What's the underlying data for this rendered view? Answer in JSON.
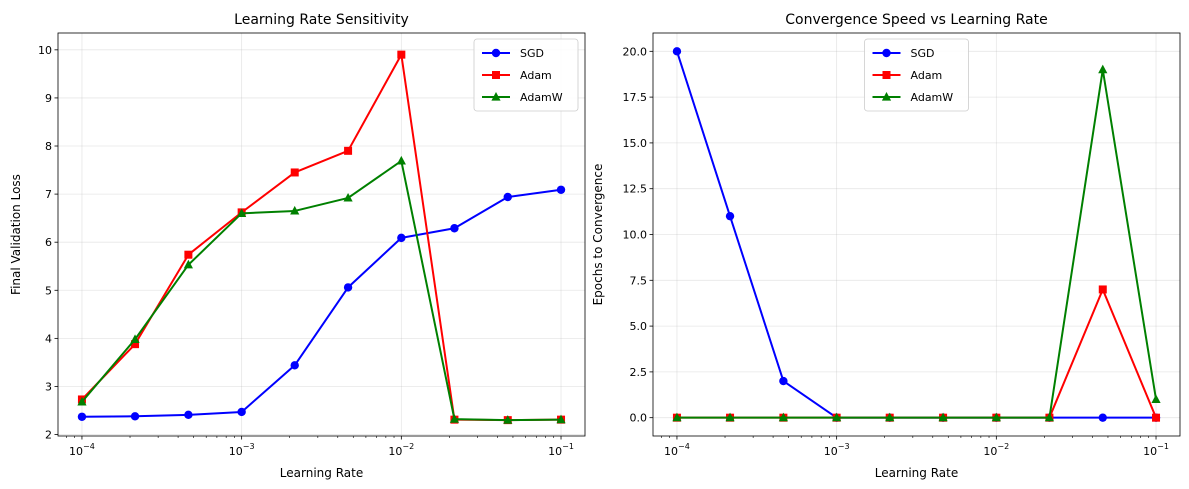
{
  "chart_data": [
    {
      "type": "line",
      "title": "Learning Rate Sensitivity",
      "xlabel": "Learning Rate",
      "ylabel": "Final Validation Loss",
      "xscale": "log",
      "xlim": [
        7.08e-05,
        0.1413
      ],
      "ylim": [
        1.97,
        10.35
      ],
      "grid": true,
      "legend_position": "upper right",
      "x": [
        0.0001,
        0.000215,
        0.000464,
        0.001,
        0.00215,
        0.00464,
        0.01,
        0.0215,
        0.0464,
        0.1
      ],
      "x_ticks": [
        {
          "value": 0.0001,
          "base": "10",
          "exp": "−4"
        },
        {
          "value": 0.001,
          "base": "10",
          "exp": "−3"
        },
        {
          "value": 0.01,
          "base": "10",
          "exp": "−2"
        },
        {
          "value": 0.1,
          "base": "10",
          "exp": "−1"
        }
      ],
      "y_ticks": [
        2,
        3,
        4,
        5,
        6,
        7,
        8,
        9,
        10
      ],
      "y_tick_labels": [
        "2",
        "3",
        "4",
        "5",
        "6",
        "7",
        "8",
        "9",
        "10"
      ],
      "series": [
        {
          "name": "SGD",
          "color": "#0000ff",
          "marker": "circle",
          "values": [
            2.37,
            2.38,
            2.41,
            2.47,
            3.44,
            5.06,
            6.09,
            6.29,
            6.94,
            7.09
          ]
        },
        {
          "name": "Adam",
          "color": "#ff0000",
          "marker": "square",
          "values": [
            2.73,
            3.88,
            5.74,
            6.62,
            7.45,
            7.9,
            9.9,
            2.31,
            2.3,
            2.31
          ]
        },
        {
          "name": "AdamW",
          "color": "#008000",
          "marker": "triangle",
          "values": [
            2.68,
            3.98,
            5.53,
            6.6,
            6.65,
            6.92,
            7.69,
            2.32,
            2.3,
            2.31
          ]
        }
      ]
    },
    {
      "type": "line",
      "title": "Convergence Speed vs Learning Rate",
      "xlabel": "Learning Rate",
      "ylabel": "Epochs to Convergence",
      "xscale": "log",
      "xlim": [
        7.08e-05,
        0.1413
      ],
      "ylim": [
        -1.0,
        21.0
      ],
      "grid": true,
      "legend_position": "upper center",
      "x": [
        0.0001,
        0.000215,
        0.000464,
        0.001,
        0.00215,
        0.00464,
        0.01,
        0.0215,
        0.0464,
        0.1
      ],
      "x_ticks": [
        {
          "value": 0.0001,
          "base": "10",
          "exp": "−4"
        },
        {
          "value": 0.001,
          "base": "10",
          "exp": "−3"
        },
        {
          "value": 0.01,
          "base": "10",
          "exp": "−2"
        },
        {
          "value": 0.1,
          "base": "10",
          "exp": "−1"
        }
      ],
      "y_ticks": [
        0,
        2.5,
        5,
        7.5,
        10,
        12.5,
        15,
        17.5,
        20
      ],
      "y_tick_labels": [
        "0.0",
        "2.5",
        "5.0",
        "7.5",
        "10.0",
        "12.5",
        "15.0",
        "17.5",
        "20.0"
      ],
      "series": [
        {
          "name": "SGD",
          "color": "#0000ff",
          "marker": "circle",
          "values": [
            20,
            11,
            2,
            0,
            0,
            0,
            0,
            0,
            0,
            0
          ]
        },
        {
          "name": "Adam",
          "color": "#ff0000",
          "marker": "square",
          "values": [
            0,
            0,
            0,
            0,
            0,
            0,
            0,
            0,
            7,
            0
          ]
        },
        {
          "name": "AdamW",
          "color": "#008000",
          "marker": "triangle",
          "values": [
            0,
            0,
            0,
            0,
            0,
            0,
            0,
            0,
            19,
            1
          ]
        }
      ]
    }
  ]
}
